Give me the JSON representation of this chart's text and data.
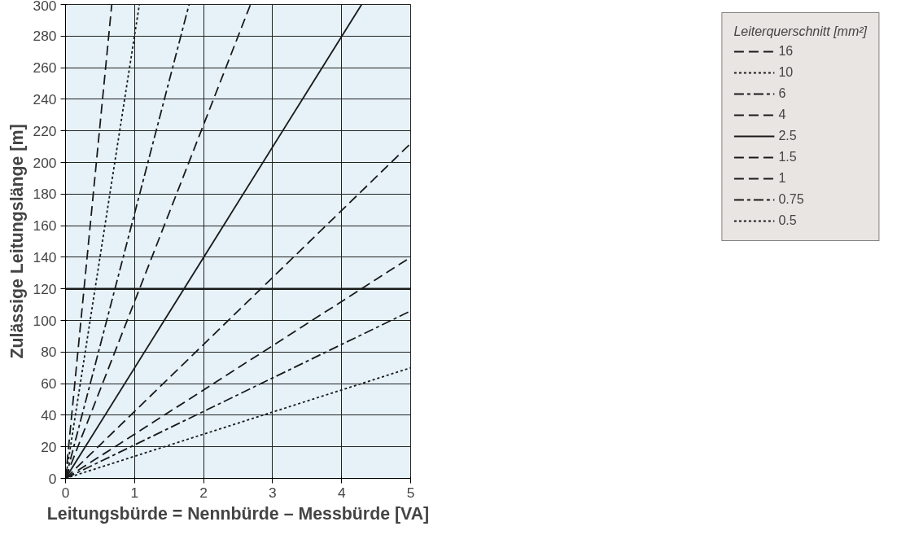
{
  "chart_data": {
    "type": "line",
    "xlabel": "Leitungsbürde = Nennbürde – Messbürde [VA]",
    "ylabel": "Zulässige Leitungslänge [m]",
    "legend_title": "Leiterquerschnitt [mm²]",
    "xlim": [
      0,
      5
    ],
    "ylim": [
      0,
      300
    ],
    "xticks": [
      0,
      1,
      2,
      3,
      4,
      5
    ],
    "yticks": [
      0,
      20,
      40,
      60,
      80,
      100,
      120,
      140,
      160,
      180,
      200,
      220,
      240,
      260,
      280,
      300
    ],
    "grid": true,
    "legend": "right",
    "marker": "none",
    "series": [
      {
        "name": "16",
        "color": "#1a1a1a",
        "line_style": "dashed",
        "x": [
          0,
          0.67
        ],
        "values": [
          0,
          300
        ]
      },
      {
        "name": "10",
        "color": "#1a1a1a",
        "line_style": "dotted",
        "x": [
          0,
          1.07
        ],
        "values": [
          0,
          300
        ]
      },
      {
        "name": "6",
        "color": "#1a1a1a",
        "line_style": "dashdot",
        "x": [
          0,
          1.79
        ],
        "values": [
          0,
          300
        ]
      },
      {
        "name": "4",
        "color": "#1a1a1a",
        "line_style": "dashed",
        "x": [
          0,
          2.68
        ],
        "values": [
          0,
          300
        ]
      },
      {
        "name": "2.5",
        "color": "#1a1a1a",
        "line_style": "solid",
        "x": [
          0,
          4.29
        ],
        "values": [
          0,
          300
        ]
      },
      {
        "name": "1.5",
        "color": "#1a1a1a",
        "line_style": "dashed",
        "x": [
          0,
          5
        ],
        "values": [
          0,
          212
        ]
      },
      {
        "name": "1",
        "color": "#1a1a1a",
        "line_style": "dashed",
        "x": [
          0,
          5
        ],
        "values": [
          0,
          140
        ]
      },
      {
        "name": "0.75",
        "color": "#1a1a1a",
        "line_style": "dashdot",
        "x": [
          0,
          5
        ],
        "values": [
          0,
          106
        ]
      },
      {
        "name": "0.5",
        "color": "#1a1a1a",
        "line_style": "dotted",
        "x": [
          0,
          5
        ],
        "values": [
          0,
          70
        ]
      }
    ],
    "ref_lines": [
      {
        "axis": "y",
        "value": 120,
        "color": "#1a1a1a",
        "line_style": "solid"
      }
    ]
  }
}
